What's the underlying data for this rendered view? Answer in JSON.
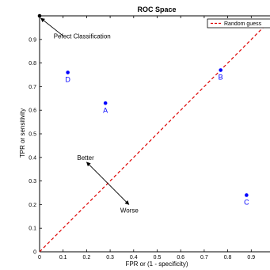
{
  "chart_data": {
    "type": "scatter",
    "title": "ROC Space",
    "xlabel": "FPR or (1 - specificity)",
    "ylabel": "TPR or sensitivity",
    "xlim": [
      0,
      1
    ],
    "ylim": [
      0,
      1
    ],
    "x_ticks": [
      "0",
      "0.1",
      "0.2",
      "0.3",
      "0.4",
      "0.5",
      "0.6",
      "0.7",
      "0.8",
      "0.9"
    ],
    "y_ticks": [
      "0",
      "0.1",
      "0.2",
      "0.3",
      "0.4",
      "0.5",
      "0.6",
      "0.7",
      "0.8",
      "0.9"
    ],
    "grid": false,
    "legend": {
      "placement": "top-right",
      "entries": [
        "Random guess"
      ]
    },
    "points": [
      {
        "label": "A",
        "x": 0.28,
        "y": 0.63
      },
      {
        "label": "B",
        "x": 0.77,
        "y": 0.77
      },
      {
        "label": "C",
        "x": 0.88,
        "y": 0.24
      },
      {
        "label": "D",
        "x": 0.12,
        "y": 0.76
      }
    ],
    "perfect_point": {
      "x": 0,
      "y": 1
    },
    "reference_line": {
      "name": "Random guess",
      "from": [
        0,
        0
      ],
      "to": [
        1,
        1
      ]
    },
    "annotations": [
      {
        "text": "Pefect Classification",
        "from": [
          0.1,
          0.915
        ],
        "to": [
          0.005,
          0.99
        ]
      },
      {
        "text": "Better",
        "from": [
          0.29,
          0.29
        ],
        "to": [
          0.2,
          0.38
        ]
      },
      {
        "text": "Worse",
        "from": [
          0.29,
          0.29
        ],
        "to": [
          0.38,
          0.2
        ]
      }
    ],
    "colors": {
      "points": "#0000ff",
      "reference_line": "#dd0000",
      "axes": "#000000"
    }
  }
}
